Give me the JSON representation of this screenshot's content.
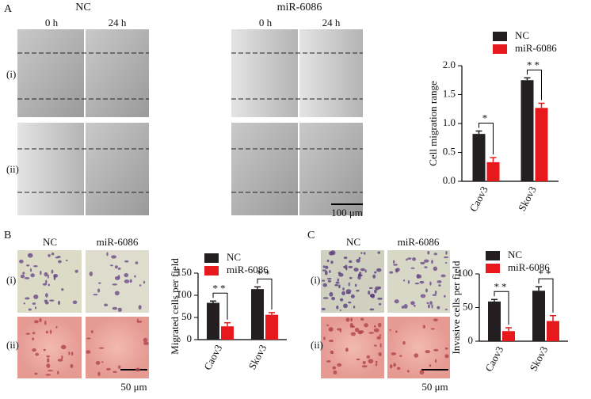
{
  "panel_a": {
    "letter": "A",
    "groups": [
      {
        "title": "NC",
        "times": [
          "0 h",
          "24 h"
        ]
      },
      {
        "title": "miR-6086",
        "times": [
          "0 h",
          "24 h"
        ]
      }
    ],
    "rows": [
      "(i)",
      "(ii)"
    ],
    "scale_bar": "100 μm"
  },
  "panel_b": {
    "letter": "B",
    "columns": [
      "NC",
      "miR-6086"
    ],
    "rows": [
      "(i)",
      "(ii)"
    ],
    "scale_bar": "50 μm"
  },
  "panel_c": {
    "letter": "C",
    "columns": [
      "NC",
      "miR-6086"
    ],
    "rows": [
      "(i)",
      "(ii)"
    ],
    "scale_bar": "50 μm"
  },
  "chart_data": [
    {
      "type": "bar",
      "y_label": "Cell migration range",
      "categories": [
        "Caov3",
        "Skov3"
      ],
      "series": [
        {
          "name": "NC",
          "color": "#231f20",
          "values": [
            0.82,
            1.75
          ],
          "errors": [
            0.05,
            0.04
          ]
        },
        {
          "name": "miR-6086",
          "color": "#e8191c",
          "values": [
            0.33,
            1.27
          ],
          "errors": [
            0.08,
            0.08
          ]
        }
      ],
      "annotations": [
        "*",
        "**"
      ],
      "ylim": [
        0,
        2
      ],
      "yticks": [
        {
          "value": 0,
          "label": "0.0"
        },
        {
          "value": 0.5,
          "label": "0.5"
        },
        {
          "value": 1,
          "label": "1.0"
        },
        {
          "value": 1.5,
          "label": "1.5"
        },
        {
          "value": 2,
          "label": "2.0"
        }
      ]
    },
    {
      "type": "bar",
      "y_label": "Migrated cells per field",
      "categories": [
        "Caov3",
        "Skov3"
      ],
      "series": [
        {
          "name": "NC",
          "color": "#231f20",
          "values": [
            83,
            114
          ],
          "errors": [
            4,
            5
          ]
        },
        {
          "name": "miR-6086",
          "color": "#e8191c",
          "values": [
            30,
            56
          ],
          "errors": [
            8,
            5
          ]
        }
      ],
      "annotations": [
        "**",
        "**"
      ],
      "ylim": [
        0,
        150
      ],
      "yticks": [
        0,
        50,
        100,
        150
      ]
    },
    {
      "type": "bar",
      "y_label": "Invasive cells per field",
      "categories": [
        "Caov3",
        "Skov3"
      ],
      "series": [
        {
          "name": "NC",
          "color": "#231f20",
          "values": [
            59,
            75
          ],
          "errors": [
            3,
            6
          ]
        },
        {
          "name": "miR-6086",
          "color": "#e8191c",
          "values": [
            15,
            30
          ],
          "errors": [
            5,
            8
          ]
        }
      ],
      "annotations": [
        "**",
        "**"
      ],
      "ylim": [
        0,
        100
      ],
      "yticks": [
        0,
        50,
        100
      ]
    }
  ]
}
